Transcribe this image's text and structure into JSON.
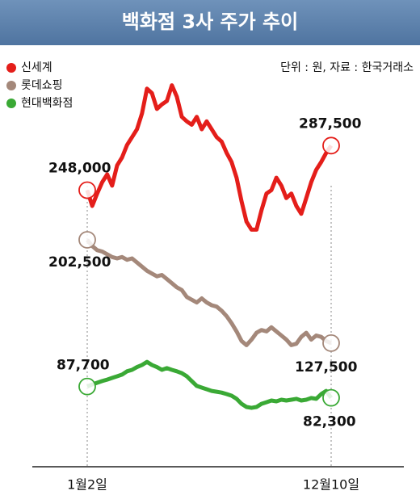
{
  "chart_data": {
    "type": "line",
    "title": "백화점 3사 주가 추이",
    "source": "단위 : 원, 자료 : 한국거래소",
    "categories": [
      "1월2일",
      null,
      null,
      null,
      null,
      null,
      null,
      null,
      null,
      null,
      null,
      null,
      null,
      null,
      null,
      null,
      null,
      null,
      null,
      null,
      null,
      null,
      null,
      null,
      null,
      null,
      null,
      null,
      null,
      null,
      null,
      null,
      null,
      null,
      null,
      null,
      null,
      null,
      null,
      null,
      null,
      null,
      null,
      null,
      null,
      null,
      null,
      null,
      null,
      "12월10일"
    ],
    "series": [
      {
        "name": "신세계",
        "color": "#e41e1a",
        "ylim": [
          30000,
          345000
        ],
        "values": [
          248000,
          234000,
          245000,
          255000,
          262000,
          252000,
          270000,
          277000,
          288000,
          295000,
          302000,
          316000,
          338000,
          334000,
          320000,
          324000,
          327000,
          341000,
          331000,
          313000,
          309000,
          306000,
          313000,
          302000,
          309000,
          302000,
          295000,
          291000,
          281000,
          273000,
          259000,
          238000,
          220000,
          213000,
          213000,
          230000,
          245000,
          248000,
          259000,
          252000,
          241000,
          245000,
          234000,
          227000,
          241000,
          255000,
          266000,
          273000,
          281000,
          287500
        ],
        "value_labels": [
          "248,000",
          null,
          null,
          null,
          null,
          null,
          null,
          null,
          null,
          null,
          null,
          null,
          null,
          null,
          null,
          null,
          null,
          null,
          null,
          null,
          null,
          null,
          null,
          null,
          null,
          null,
          null,
          null,
          null,
          null,
          null,
          null,
          null,
          null,
          null,
          null,
          null,
          null,
          null,
          null,
          null,
          null,
          null,
          null,
          null,
          null,
          null,
          null,
          null,
          "287,500"
        ]
      },
      {
        "name": "롯데쇼핑",
        "color": "#a4887a",
        "ylim": [
          60000,
          318000
        ],
        "values": [
          202500,
          198000,
          195000,
          194000,
          192000,
          190000,
          189000,
          190000,
          188000,
          189000,
          186000,
          183000,
          180000,
          178000,
          176000,
          177000,
          174000,
          171000,
          168000,
          166000,
          161000,
          159000,
          157000,
          160000,
          157000,
          155000,
          154000,
          151000,
          147000,
          142000,
          136000,
          129000,
          126000,
          130000,
          135000,
          137000,
          136000,
          139000,
          136000,
          133000,
          130000,
          126000,
          127000,
          132000,
          135000,
          130000,
          133000,
          132000,
          129000,
          127500
        ],
        "value_labels": [
          "202,500",
          null,
          null,
          null,
          null,
          null,
          null,
          null,
          null,
          null,
          null,
          null,
          null,
          null,
          null,
          null,
          null,
          null,
          null,
          null,
          null,
          null,
          null,
          null,
          null,
          null,
          null,
          null,
          null,
          null,
          null,
          null,
          null,
          null,
          null,
          null,
          null,
          null,
          null,
          null,
          null,
          null,
          null,
          null,
          null,
          null,
          null,
          null,
          null,
          "127,500"
        ]
      },
      {
        "name": "현대백화점",
        "color": "#3aa935",
        "ylim": [
          64000,
          234000
        ],
        "values": [
          87700,
          88700,
          89500,
          90300,
          91000,
          91800,
          92600,
          93400,
          95000,
          95700,
          97000,
          98000,
          99500,
          98000,
          97000,
          95700,
          96500,
          95700,
          95000,
          94100,
          92600,
          90300,
          88000,
          87200,
          86400,
          85600,
          85200,
          84800,
          84100,
          83300,
          81800,
          79400,
          77900,
          77500,
          77900,
          79400,
          80200,
          81000,
          80600,
          81400,
          81000,
          81400,
          81800,
          81000,
          81400,
          82200,
          81800,
          84100,
          85600,
          82300
        ],
        "value_labels": [
          "87,700",
          null,
          null,
          null,
          null,
          null,
          null,
          null,
          null,
          null,
          null,
          null,
          null,
          null,
          null,
          null,
          null,
          null,
          null,
          null,
          null,
          null,
          null,
          null,
          null,
          null,
          null,
          null,
          null,
          null,
          null,
          null,
          null,
          null,
          null,
          null,
          null,
          null,
          null,
          null,
          null,
          null,
          null,
          null,
          null,
          null,
          null,
          null,
          null,
          "82,300"
        ]
      }
    ]
  }
}
